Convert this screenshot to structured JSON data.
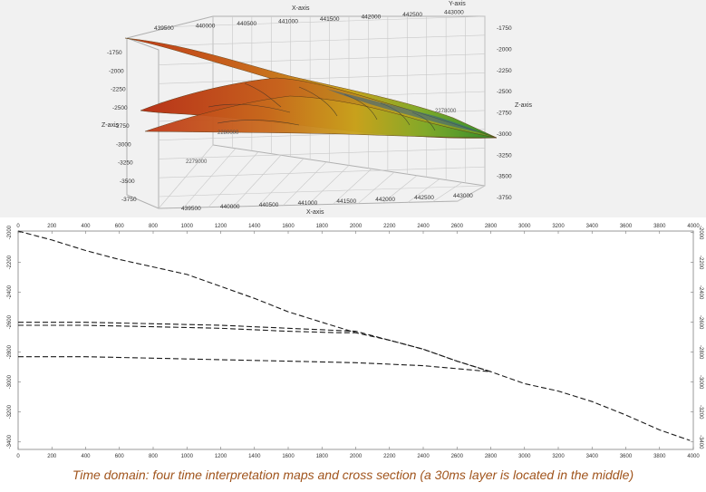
{
  "top_view": {
    "x_axis_label": "X-axis",
    "y_axis_label": "Y-axis",
    "z_axis_label": "Z-axis",
    "x_ticks_top": [
      "439500",
      "440000",
      "440500",
      "441000",
      "441500",
      "442000",
      "442500",
      "443000"
    ],
    "x_ticks_bottom": [
      "439500",
      "440000",
      "440500",
      "441000",
      "441500",
      "442000",
      "442500",
      "443000"
    ],
    "z_ticks_left": [
      "-1750",
      "-2000",
      "-2250",
      "-2500",
      "-2750",
      "-3000",
      "-3250",
      "-3500",
      "-3750"
    ],
    "z_ticks_right": [
      "-1750",
      "-2000",
      "-2250",
      "-2500",
      "-2750",
      "-3000",
      "-3250",
      "-3500",
      "-3750"
    ],
    "y_ticks": [
      "2280000",
      "2279000",
      "2278000"
    ],
    "colors": {
      "surface_high": "#2d8a2d",
      "surface_mid": "#c9a31c",
      "surface_low": "#c0391a",
      "grid": "#c8c8c8"
    }
  },
  "cross_section": {
    "x_ticks_top": [
      "0",
      "200",
      "400",
      "600",
      "800",
      "1000",
      "1200",
      "1400",
      "1600",
      "1800",
      "2000",
      "2200",
      "2400",
      "2600",
      "2800",
      "3000",
      "3200",
      "3400",
      "3600",
      "3800",
      "4000"
    ],
    "x_ticks_bottom": [
      "0",
      "200",
      "400",
      "600",
      "800",
      "1000",
      "1200",
      "1400",
      "1600",
      "1800",
      "2000",
      "2200",
      "2400",
      "2600",
      "2800",
      "3000",
      "3200",
      "3400",
      "3600",
      "3800",
      "4000"
    ],
    "y_ticks_left": [
      "-2000",
      "-2200",
      "-2400",
      "-2600",
      "-2800",
      "-3000",
      "-3200",
      "-3400"
    ],
    "y_ticks_right": [
      "-2000",
      "-2200",
      "-2400",
      "-2600",
      "-2800",
      "-3000",
      "-3200",
      "-3400"
    ],
    "line_color": "#1a1a1a"
  },
  "chart_data": {
    "type": "line",
    "xlim": [
      0,
      4000
    ],
    "ylim": [
      -3450,
      -1990
    ],
    "series": [
      {
        "x": [
          0,
          200,
          400,
          600,
          800,
          1000,
          1200,
          1400,
          1600,
          1800,
          2000,
          2200,
          2400,
          2600,
          2800,
          3000,
          3200,
          3400,
          3600,
          3800,
          3980
        ],
        "y": [
          -1990,
          -2050,
          -2120,
          -2180,
          -2230,
          -2280,
          -2360,
          -2440,
          -2530,
          -2600,
          -2670,
          -2720,
          -2780,
          -2860,
          -2930,
          -3010,
          -3060,
          -3130,
          -3220,
          -3320,
          -3390
        ]
      },
      {
        "x": [
          0,
          400,
          800,
          1200,
          1600,
          2000,
          2200,
          2400,
          2600,
          2800
        ],
        "y": [
          -2600,
          -2600,
          -2610,
          -2620,
          -2640,
          -2660,
          -2720,
          -2780,
          -2860,
          -2930
        ]
      },
      {
        "x": [
          0,
          400,
          800,
          1200,
          1600,
          1900,
          2000
        ],
        "y": [
          -2620,
          -2620,
          -2630,
          -2640,
          -2660,
          -2670,
          -2670
        ]
      },
      {
        "x": [
          0,
          400,
          800,
          1200,
          1600,
          2000,
          2400,
          2800
        ],
        "y": [
          -2830,
          -2830,
          -2840,
          -2850,
          -2860,
          -2870,
          -2890,
          -2930
        ]
      }
    ]
  },
  "caption": "Time domain: four time interpretation maps and cross section (a 30ms layer is located in the middle)"
}
